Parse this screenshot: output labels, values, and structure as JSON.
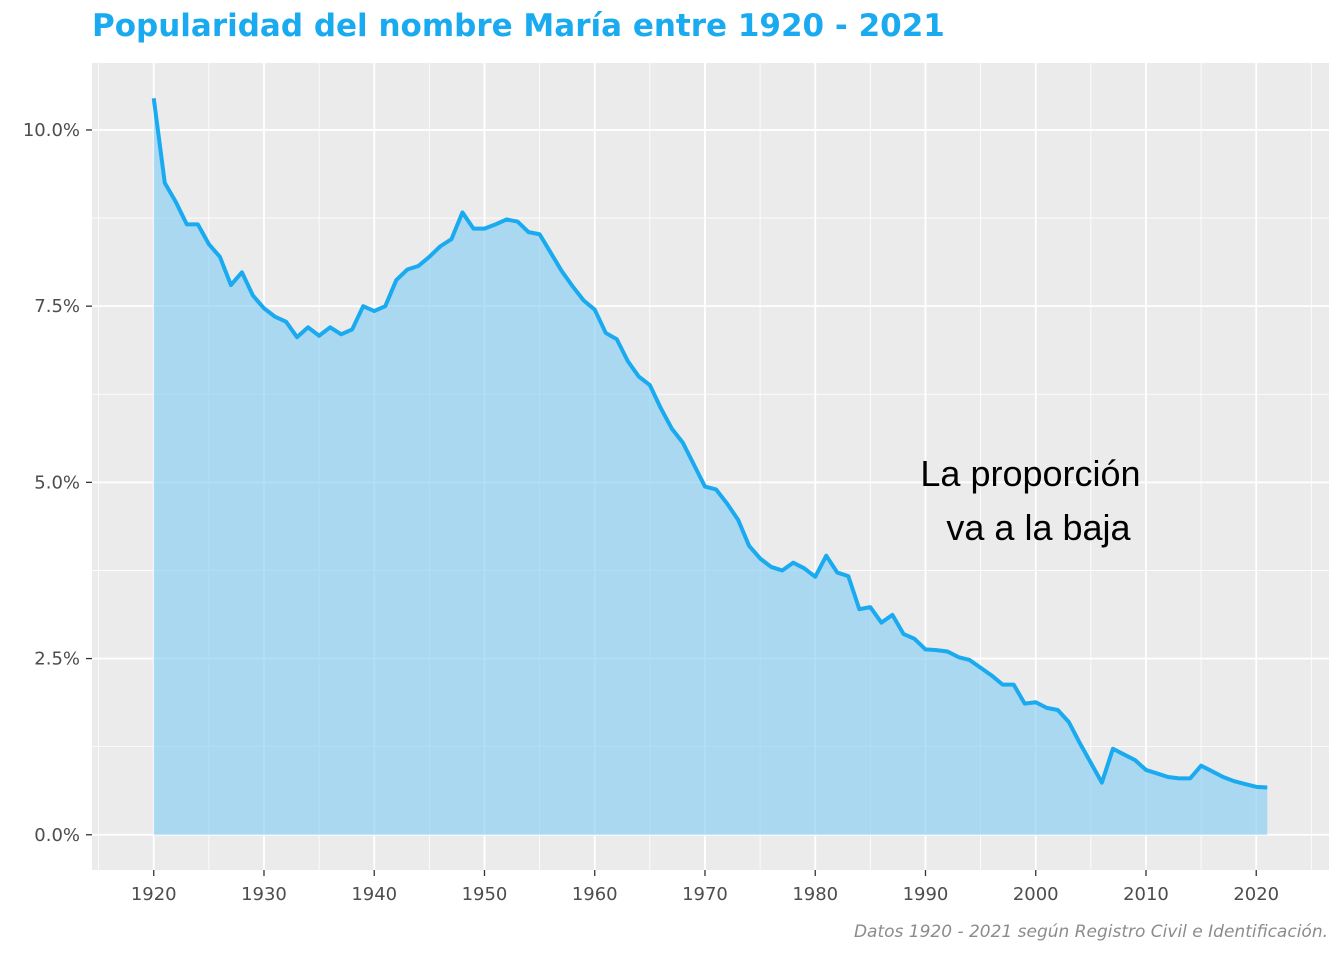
{
  "chart_data": {
    "type": "area",
    "title": "Popularidad del nombre María entre 1920 - 2021",
    "caption": "Datos 1920 - 2021 según Registro Civil e Identificación.",
    "xlabel": "",
    "ylabel": "",
    "xlim": [
      1914.4,
      2026.6
    ],
    "ylim": [
      -0.5,
      10.95
    ],
    "x_ticks": [
      1920,
      1930,
      1940,
      1950,
      1960,
      1970,
      1980,
      1990,
      2000,
      2010,
      2020
    ],
    "y_ticks": [
      0,
      2.5,
      5,
      7.5,
      10
    ],
    "y_tick_labels": [
      "0.0%",
      "2.5%",
      "5.0%",
      "7.5%",
      "10.0%"
    ],
    "grid": true,
    "colors": {
      "line": "#1aaaf0",
      "fill": "#87cef3",
      "panel": "#ebebeb",
      "grid": "#ffffff"
    },
    "annotation": {
      "lines": [
        "La proporción",
        "va a la baja"
      ],
      "x": 1990,
      "y": 4.75
    },
    "series": [
      {
        "x": [
          1920,
          1921,
          1922,
          1923,
          1924,
          1925,
          1926,
          1927,
          1928,
          1929,
          1930,
          1931,
          1932,
          1933,
          1934,
          1935,
          1936,
          1937,
          1938,
          1939,
          1940,
          1941,
          1942,
          1943,
          1944,
          1945,
          1946,
          1947,
          1948,
          1949,
          1950,
          1951,
          1952,
          1953,
          1954,
          1955,
          1956,
          1957,
          1958,
          1959,
          1960,
          1961,
          1962,
          1963,
          1964,
          1965,
          1966,
          1967,
          1968,
          1969,
          1970,
          1971,
          1972,
          1973,
          1974,
          1975,
          1976,
          1977,
          1978,
          1979,
          1980,
          1981,
          1982,
          1983,
          1984,
          1985,
          1986,
          1987,
          1988,
          1989,
          1990,
          1991,
          1992,
          1993,
          1994,
          1995,
          1996,
          1997,
          1998,
          1999,
          2000,
          2001,
          2002,
          2003,
          2004,
          2005,
          2006,
          2007,
          2008,
          2009,
          2010,
          2011,
          2012,
          2013,
          2014,
          2015,
          2016,
          2017,
          2018,
          2019,
          2020,
          2021
        ],
        "values": [
          10.45,
          9.25,
          8.98,
          8.66,
          8.66,
          8.38,
          8.2,
          7.8,
          7.98,
          7.65,
          7.47,
          7.35,
          7.28,
          7.06,
          7.2,
          7.08,
          7.2,
          7.1,
          7.17,
          7.5,
          7.43,
          7.5,
          7.87,
          8.02,
          8.07,
          8.2,
          8.35,
          8.45,
          8.83,
          8.6,
          8.6,
          8.66,
          8.73,
          8.7,
          8.55,
          8.52,
          8.26,
          8.0,
          7.78,
          7.58,
          7.45,
          7.12,
          7.03,
          6.72,
          6.5,
          6.38,
          6.05,
          5.76,
          5.56,
          5.25,
          4.94,
          4.9,
          4.7,
          4.47,
          4.1,
          3.92,
          3.8,
          3.75,
          3.86,
          3.78,
          3.66,
          3.96,
          3.72,
          3.67,
          3.2,
          3.23,
          3.01,
          3.12,
          2.85,
          2.78,
          2.63,
          2.62,
          2.6,
          2.52,
          2.48,
          2.37,
          2.26,
          2.13,
          2.13,
          1.86,
          1.88,
          1.8,
          1.77,
          1.6,
          1.3,
          1.02,
          0.74,
          1.22,
          1.14,
          1.06,
          0.92,
          0.87,
          0.82,
          0.8,
          0.8,
          0.98,
          0.9,
          0.82,
          0.76,
          0.72,
          0.68,
          0.67
        ]
      }
    ]
  }
}
